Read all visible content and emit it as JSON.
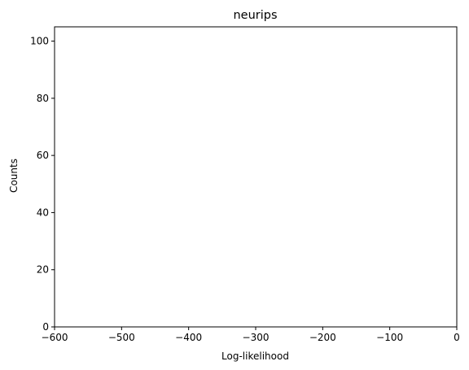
{
  "chart_data": {
    "type": "bar",
    "title": "neurips",
    "xlabel": "Log-likelihood",
    "ylabel": "Counts",
    "xlim": [
      -600,
      0
    ],
    "ylim": [
      0,
      105
    ],
    "x_ticks": [
      -600,
      -500,
      -400,
      -300,
      -200,
      -100,
      0
    ],
    "x_tick_labels": [
      "−600",
      "−500",
      "−400",
      "−300",
      "−200",
      "−100",
      "0"
    ],
    "y_ticks": [
      0,
      20,
      40,
      60,
      80,
      100
    ],
    "y_tick_labels": [
      "0",
      "20",
      "40",
      "60",
      "80",
      "100"
    ],
    "grid": false,
    "series": [],
    "colors": {
      "axis": "#000000",
      "background": "#ffffff"
    }
  }
}
